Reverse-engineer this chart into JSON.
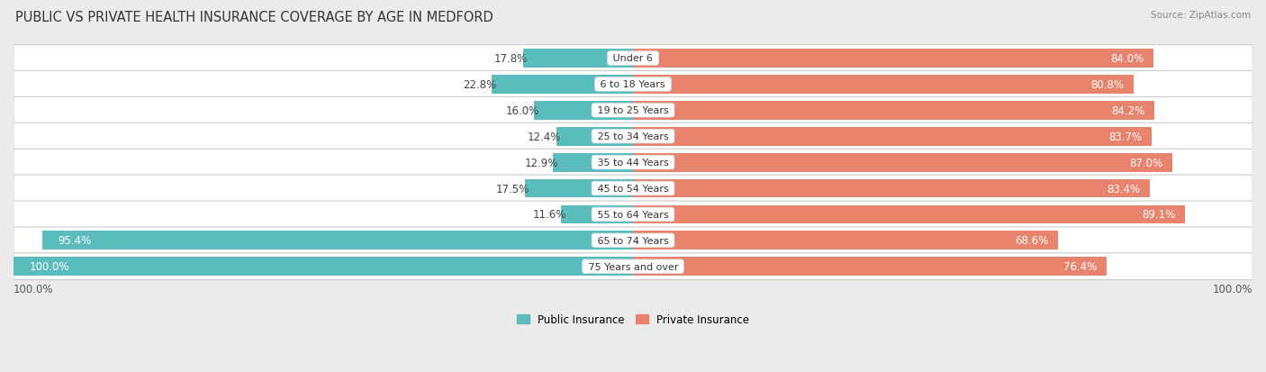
{
  "title": "PUBLIC VS PRIVATE HEALTH INSURANCE COVERAGE BY AGE IN MEDFORD",
  "source": "Source: ZipAtlas.com",
  "categories": [
    "Under 6",
    "6 to 18 Years",
    "19 to 25 Years",
    "25 to 34 Years",
    "35 to 44 Years",
    "45 to 54 Years",
    "55 to 64 Years",
    "65 to 74 Years",
    "75 Years and over"
  ],
  "public_values": [
    17.8,
    22.8,
    16.0,
    12.4,
    12.9,
    17.5,
    11.6,
    95.4,
    100.0
  ],
  "private_values": [
    84.0,
    80.8,
    84.2,
    83.7,
    87.0,
    83.4,
    89.1,
    68.6,
    76.4
  ],
  "public_color": "#5bbcbe",
  "private_color": "#e8846e",
  "private_color_faded": "#eea898",
  "bg_color": "#ebebeb",
  "row_bg_color": "#f5f5f5",
  "bar_height": 0.72,
  "title_fontsize": 10.5,
  "label_fontsize": 8.5,
  "category_fontsize": 8.0,
  "legend_fontsize": 8.5,
  "source_fontsize": 7.5,
  "bottom_label": "100.0%"
}
